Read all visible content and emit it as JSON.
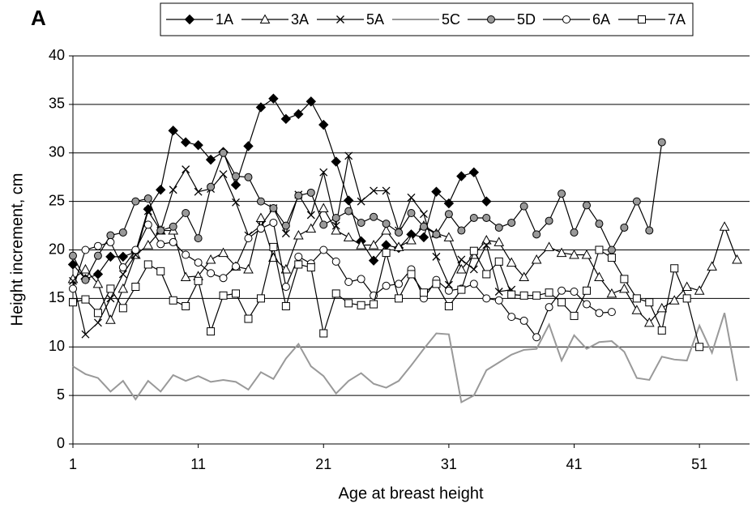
{
  "chart_data": {
    "type": "line",
    "panel_label": "A",
    "x_label": "Age at breast height",
    "y_label": "Height increment, cm",
    "x": [
      1,
      2,
      3,
      4,
      5,
      6,
      7,
      8,
      9,
      10,
      11,
      12,
      13,
      14,
      15,
      16,
      17,
      18,
      19,
      20,
      21,
      22,
      23,
      24,
      25,
      26,
      27,
      28,
      29,
      30,
      31,
      32,
      33,
      34,
      35,
      36,
      37,
      38,
      39,
      40,
      41,
      42,
      43,
      44,
      45,
      46,
      47,
      48,
      49,
      50,
      51,
      52,
      53,
      54
    ],
    "series": [
      {
        "name": "1A",
        "color": "#000000",
        "marker": "diamond",
        "marker_fill": "#000000",
        "values": [
          18.5,
          17,
          17.5,
          19.3,
          19.3,
          19.8,
          24.2,
          26.2,
          32.3,
          31.1,
          30.8,
          29.3,
          30.1,
          26.7,
          30.7,
          34.7,
          35.6,
          33.5,
          34,
          35.3,
          32.9,
          29.1,
          25.1,
          20.9,
          18.9,
          20.5,
          20.2,
          21.6,
          21.3,
          26,
          24.8,
          27.6,
          28,
          25,
          null,
          null,
          null,
          null,
          null,
          null,
          null,
          null,
          null,
          null,
          null,
          null,
          null,
          null,
          null,
          null,
          null,
          null,
          null,
          null
        ]
      },
      {
        "name": "3A",
        "color": "#000000",
        "marker": "triangle",
        "marker_fill": "#ffffff",
        "values": [
          17,
          18,
          16.5,
          12.8,
          16,
          19.5,
          20.5,
          22,
          22,
          17.2,
          17.3,
          19,
          19.7,
          18.3,
          18,
          23.3,
          19.2,
          18,
          21.5,
          22.2,
          24.3,
          22,
          21.3,
          20.5,
          20.5,
          22,
          20.3,
          21,
          22.5,
          21.7,
          21.3,
          18,
          19.5,
          21,
          20.8,
          18.7,
          17.2,
          19,
          20.3,
          19.7,
          19.5,
          19.5,
          17.2,
          15.5,
          16,
          13.8,
          12.5,
          14,
          14.8,
          16.2,
          15.8,
          18.3,
          22.4,
          19
        ]
      },
      {
        "name": "5A",
        "color": "#000000",
        "marker": "cross",
        "marker_fill": "#000000",
        "values": [
          16.8,
          11.3,
          12.5,
          15,
          17.5,
          19.5,
          24,
          22,
          26.2,
          28.3,
          26,
          26.3,
          27.8,
          24.9,
          21.5,
          22.5,
          24.3,
          21.7,
          25.7,
          23.6,
          28,
          22.5,
          29.7,
          25,
          26.1,
          26.1,
          22,
          25.4,
          23.7,
          19.3,
          16.4,
          19,
          18,
          20.5,
          15.7,
          15.9,
          null,
          null,
          null,
          null,
          null,
          null,
          null,
          null,
          null,
          null,
          null,
          null,
          null,
          null,
          null,
          null,
          null,
          null
        ]
      },
      {
        "name": "5C",
        "color": "#999999",
        "marker": "none",
        "marker_fill": "#999999",
        "values": [
          8,
          7.2,
          6.8,
          5.4,
          6.5,
          4.6,
          6.5,
          5.4,
          7.1,
          6.5,
          7,
          6.4,
          6.6,
          6.4,
          5.6,
          7.4,
          6.7,
          8.8,
          10.3,
          8,
          7,
          5.2,
          6.5,
          7.3,
          6.2,
          5.8,
          6.5,
          8.1,
          9.8,
          11.4,
          11.3,
          4.3,
          5,
          7.6,
          8.4,
          9.2,
          9.7,
          9.8,
          12.3,
          8.6,
          11.2,
          9.8,
          10.5,
          10.6,
          9.5,
          6.8,
          6.6,
          9,
          8.7,
          8.6,
          12.2,
          9.4,
          13.5,
          6.5
        ]
      },
      {
        "name": "5D",
        "color": "#000000",
        "marker": "circle",
        "marker_fill": "#999999",
        "values": [
          19.4,
          16.9,
          19.4,
          21.5,
          21.8,
          25,
          25.3,
          22,
          22.4,
          23.8,
          21.2,
          26.5,
          30,
          27.6,
          27.5,
          25,
          24.3,
          22.5,
          25.6,
          25.9,
          22.6,
          23.3,
          24,
          22.8,
          23.4,
          22.7,
          21.8,
          23.8,
          22.4,
          21.6,
          23.7,
          22,
          23.3,
          23.3,
          22.3,
          22.8,
          24.5,
          21.6,
          23,
          25.8,
          21.8,
          24.6,
          22.7,
          20,
          22.3,
          25,
          22,
          31.1,
          null,
          null,
          null,
          null,
          null,
          null
        ]
      },
      {
        "name": "6A",
        "color": "#000000",
        "marker": "circle",
        "marker_fill": "#ffffff",
        "values": [
          16,
          20,
          20.4,
          20.8,
          18.2,
          20,
          22.6,
          20.6,
          20.8,
          19.5,
          18.7,
          17.6,
          17.1,
          18.3,
          21.2,
          22.2,
          22.8,
          16.2,
          19.3,
          18.6,
          20,
          18.8,
          16.7,
          17,
          15.3,
          16.3,
          16.5,
          18,
          15,
          16.9,
          15.8,
          16,
          16.5,
          15,
          14.8,
          13.1,
          12.7,
          11,
          14.1,
          15.8,
          15.7,
          14.4,
          13.5,
          13.6,
          null,
          null,
          null,
          null,
          null,
          null,
          null,
          null,
          null,
          null
        ]
      },
      {
        "name": "7A",
        "color": "#000000",
        "marker": "square",
        "marker_fill": "#ffffff",
        "values": [
          14.6,
          14.9,
          13.5,
          16,
          14,
          16.2,
          18.5,
          17.8,
          14.8,
          14.2,
          16.8,
          11.6,
          15.3,
          15.5,
          12.9,
          15,
          20.3,
          14.2,
          18.5,
          18.2,
          11.4,
          15.5,
          14.5,
          14.3,
          14.4,
          19.7,
          15,
          17.5,
          15.6,
          16.5,
          14.2,
          15.9,
          19.9,
          17.5,
          18.8,
          15.4,
          15.3,
          15.3,
          15.6,
          14.6,
          13.2,
          15.8,
          20,
          19.2,
          17,
          15,
          14.6,
          11.7,
          18.1,
          15,
          10,
          null,
          null,
          null
        ]
      }
    ],
    "xlim": [
      1,
      55
    ],
    "xticks": [
      1,
      11,
      21,
      31,
      41,
      51
    ],
    "ylim": [
      0,
      40
    ],
    "yticks": [
      0,
      5,
      10,
      15,
      20,
      25,
      30,
      35,
      40
    ],
    "grid": true,
    "legend": "top"
  }
}
